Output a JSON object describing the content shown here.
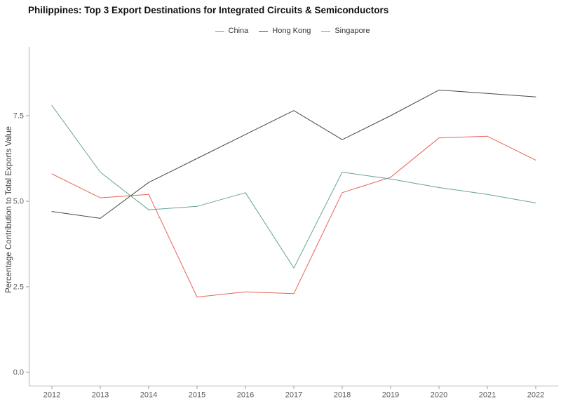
{
  "colors": {
    "background": "#ffffff",
    "axis_line": "#b0b0b0",
    "tick_mark": "#9a9a9a",
    "tick_label": "#5c5c5c",
    "axis_title": "#3d3d3d",
    "title_text": "#111111"
  },
  "chart_data": {
    "type": "line",
    "title": "Philippines: Top 3 Export Destinations for Integrated Circuits & Semiconductors",
    "xlabel": "",
    "ylabel": "Percentage Contribution to Total Exports Value",
    "x": [
      2012,
      2013,
      2014,
      2015,
      2016,
      2017,
      2018,
      2019,
      2020,
      2021,
      2022
    ],
    "series": [
      {
        "name": "China",
        "color": "#e96358",
        "values": [
          5.8,
          5.1,
          5.2,
          2.2,
          2.35,
          2.3,
          5.25,
          5.7,
          6.85,
          6.9,
          6.2
        ]
      },
      {
        "name": "Hong Kong",
        "color": "#474747",
        "values": [
          4.7,
          4.5,
          5.55,
          6.25,
          6.95,
          7.65,
          6.8,
          7.5,
          8.25,
          8.15,
          8.05
        ]
      },
      {
        "name": "Singapore",
        "color": "#68a390",
        "values": [
          7.8,
          5.85,
          4.75,
          4.85,
          5.25,
          3.05,
          5.85,
          5.65,
          5.4,
          5.2,
          4.95
        ]
      }
    ],
    "y_ticks": [
      0.0,
      2.5,
      5.0,
      7.5
    ],
    "y_tick_labels": [
      "0.0",
      "2.5",
      "5.0",
      "7.5"
    ],
    "ylim": [
      -0.4,
      9.45
    ],
    "grid": false,
    "legend_position": "top"
  }
}
